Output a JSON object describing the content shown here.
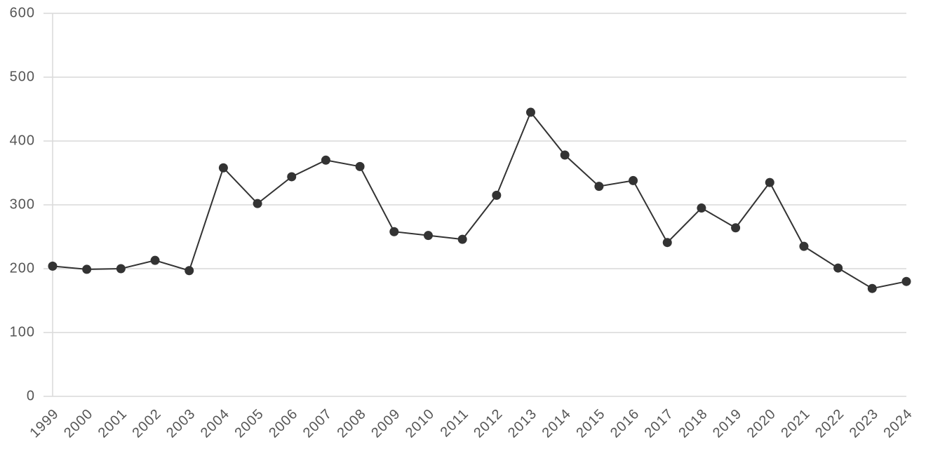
{
  "chart_data": {
    "type": "line",
    "categories": [
      "1999",
      "2000",
      "2001",
      "2002",
      "2003",
      "2004",
      "2005",
      "2006",
      "2007",
      "2008",
      "2009",
      "2010",
      "2011",
      "2012",
      "2013",
      "2014",
      "2015",
      "2016",
      "2017",
      "2018",
      "2019",
      "2020",
      "2021",
      "2022",
      "2023",
      "2024"
    ],
    "values": [
      204,
      199,
      200,
      213,
      197,
      358,
      302,
      344,
      370,
      360,
      258,
      252,
      246,
      315,
      445,
      378,
      329,
      338,
      241,
      295,
      264,
      335,
      235,
      201,
      169,
      180
    ],
    "color": "#333333",
    "ylim": [
      0,
      600
    ],
    "yticks": [
      0,
      100,
      200,
      300,
      400,
      500,
      600
    ],
    "grid": true
  }
}
